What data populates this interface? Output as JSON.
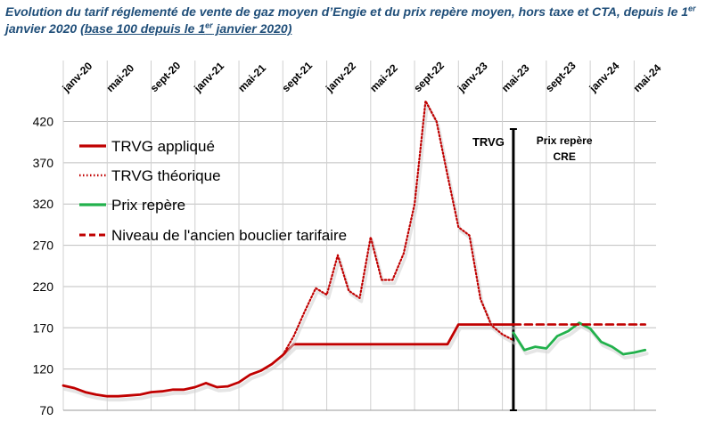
{
  "title": {
    "part1": "Evolution du tarif réglementé de vente de gaz moyen d’Engie et du prix repère moyen, hors taxe et CTA, depuis le 1",
    "sup1": "er",
    "part2": " janvier 2020 ",
    "underlined1": "(base 100 depuis le 1",
    "sup2": "er",
    "underlined2": " janvier 2020)"
  },
  "chart_data": {
    "type": "line",
    "x_unit": "month",
    "x_start": "2020-01",
    "x_end": "2024-07",
    "xticks": [
      {
        "label": "janv-20",
        "x": "2020-01"
      },
      {
        "label": "mai-20",
        "x": "2020-05"
      },
      {
        "label": "sept-20",
        "x": "2020-09"
      },
      {
        "label": "janv-21",
        "x": "2021-01"
      },
      {
        "label": "mai-21",
        "x": "2021-05"
      },
      {
        "label": "sept-21",
        "x": "2021-09"
      },
      {
        "label": "janv-22",
        "x": "2022-01"
      },
      {
        "label": "mai-22",
        "x": "2022-05"
      },
      {
        "label": "sept-22",
        "x": "2022-09"
      },
      {
        "label": "janv-23",
        "x": "2023-01"
      },
      {
        "label": "mai-23",
        "x": "2023-05"
      },
      {
        "label": "sept-23",
        "x": "2023-09"
      },
      {
        "label": "janv-24",
        "x": "2024-01"
      },
      {
        "label": "mai-24",
        "x": "2024-05"
      }
    ],
    "ylim": [
      70,
      440
    ],
    "yticks": [
      70,
      120,
      170,
      220,
      270,
      320,
      370,
      420
    ],
    "grid": "horizontal",
    "legend_position": "top-left",
    "series": [
      {
        "name": "TRVG appliqué",
        "color": "#c00000",
        "style": "solid",
        "points": [
          [
            "2020-01",
            100
          ],
          [
            "2020-02",
            97
          ],
          [
            "2020-03",
            92
          ],
          [
            "2020-04",
            89
          ],
          [
            "2020-05",
            87
          ],
          [
            "2020-06",
            87
          ],
          [
            "2020-07",
            88
          ],
          [
            "2020-08",
            89
          ],
          [
            "2020-09",
            92
          ],
          [
            "2020-10",
            93
          ],
          [
            "2020-11",
            95
          ],
          [
            "2020-12",
            95
          ],
          [
            "2021-01",
            98
          ],
          [
            "2021-02",
            103
          ],
          [
            "2021-03",
            98
          ],
          [
            "2021-04",
            99
          ],
          [
            "2021-05",
            104
          ],
          [
            "2021-06",
            113
          ],
          [
            "2021-07",
            118
          ],
          [
            "2021-08",
            126
          ],
          [
            "2021-09",
            137
          ],
          [
            "2021-10",
            150
          ],
          [
            "2021-11",
            150
          ],
          [
            "2021-12",
            150
          ],
          [
            "2022-01",
            150
          ],
          [
            "2022-02",
            150
          ],
          [
            "2022-03",
            150
          ],
          [
            "2022-04",
            150
          ],
          [
            "2022-05",
            150
          ],
          [
            "2022-06",
            150
          ],
          [
            "2022-07",
            150
          ],
          [
            "2022-08",
            150
          ],
          [
            "2022-09",
            150
          ],
          [
            "2022-10",
            150
          ],
          [
            "2022-11",
            150
          ],
          [
            "2022-12",
            150
          ],
          [
            "2023-01",
            174
          ],
          [
            "2023-02",
            174
          ],
          [
            "2023-03",
            174
          ],
          [
            "2023-04",
            174
          ],
          [
            "2023-05",
            174
          ],
          [
            "2023-06",
            174
          ]
        ]
      },
      {
        "name": "TRVG théorique",
        "color": "#c00000",
        "style": "dotted",
        "points": [
          [
            "2021-09",
            137
          ],
          [
            "2021-10",
            160
          ],
          [
            "2021-11",
            190
          ],
          [
            "2021-12",
            218
          ],
          [
            "2022-01",
            210
          ],
          [
            "2022-02",
            258
          ],
          [
            "2022-03",
            215
          ],
          [
            "2022-04",
            206
          ],
          [
            "2022-05",
            280
          ],
          [
            "2022-06",
            228
          ],
          [
            "2022-07",
            228
          ],
          [
            "2022-08",
            260
          ],
          [
            "2022-09",
            320
          ],
          [
            "2022-10",
            445
          ],
          [
            "2022-11",
            420
          ],
          [
            "2022-12",
            355
          ],
          [
            "2023-01",
            292
          ],
          [
            "2023-02",
            282
          ],
          [
            "2023-03",
            205
          ],
          [
            "2023-04",
            173
          ],
          [
            "2023-05",
            162
          ],
          [
            "2023-06",
            155
          ]
        ]
      },
      {
        "name": "Prix repère",
        "color": "#22b14c",
        "style": "solid",
        "points": [
          [
            "2023-06",
            164
          ],
          [
            "2023-07",
            143
          ],
          [
            "2023-08",
            147
          ],
          [
            "2023-09",
            145
          ],
          [
            "2023-10",
            160
          ],
          [
            "2023-11",
            166
          ],
          [
            "2023-12",
            176
          ],
          [
            "2024-01",
            169
          ],
          [
            "2024-02",
            153
          ],
          [
            "2024-03",
            147
          ],
          [
            "2024-04",
            138
          ],
          [
            "2024-05",
            140
          ],
          [
            "2024-06",
            143
          ]
        ]
      },
      {
        "name": "Niveau de l'ancien bouclier tarifaire",
        "color": "#c00000",
        "style": "dashed",
        "points": [
          [
            "2023-06",
            174
          ],
          [
            "2024-06",
            174
          ]
        ]
      }
    ],
    "annotations": [
      {
        "text": "TRVG",
        "x": "2023-04"
      },
      {
        "text": "Prix repère",
        "x": "2023-10"
      },
      {
        "text": "CRE",
        "x": "2023-10"
      }
    ],
    "divider_x": "2023-06"
  }
}
